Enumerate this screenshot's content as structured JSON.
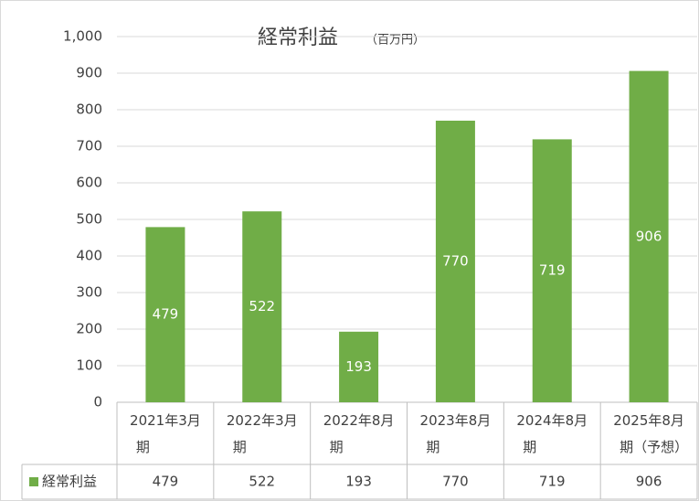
{
  "chart_data": {
    "type": "bar",
    "title": "経常利益",
    "subtitle": "（百万円）",
    "categories": [
      "2021年3月期",
      "2022年3月期",
      "2022年8月期",
      "2023年8月期",
      "2024年8月期",
      "2025年8月期（予想）"
    ],
    "series": [
      {
        "name": "経常利益",
        "color": "#70ad47",
        "values": [
          479,
          522,
          193,
          770,
          719,
          906
        ]
      }
    ],
    "ylim": [
      0,
      1000
    ],
    "yticks": [
      0,
      100,
      200,
      300,
      400,
      500,
      600,
      700,
      800,
      900,
      {
        "value": 1000,
        "label": "1,000"
      }
    ],
    "grid": true,
    "data_table": true
  }
}
